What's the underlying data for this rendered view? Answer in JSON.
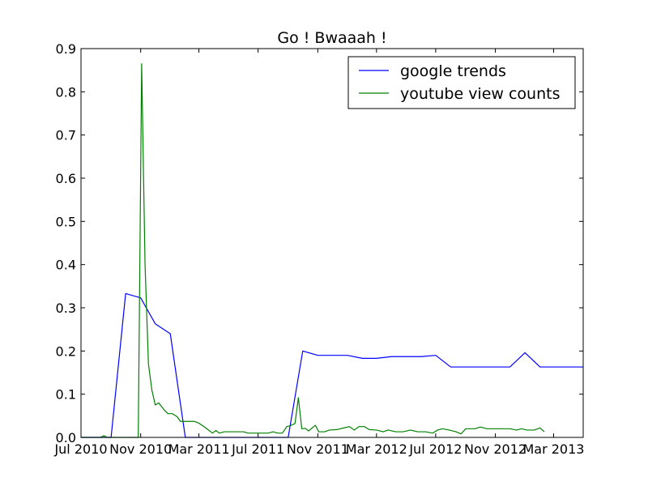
{
  "chart_data": {
    "type": "line",
    "title": "Go ! Bwaaah !",
    "xlabel": "",
    "ylabel": "",
    "xlim": [
      "2010-07-01",
      "2013-05-01"
    ],
    "ylim": [
      0,
      0.9
    ],
    "x_ticks": [
      {
        "date": "2010-07-01",
        "label": "Jul 2010"
      },
      {
        "date": "2010-11-01",
        "label": "Nov 2010"
      },
      {
        "date": "2011-03-01",
        "label": "Mar 2011"
      },
      {
        "date": "2011-07-01",
        "label": "Jul 2011"
      },
      {
        "date": "2011-11-01",
        "label": "Nov 2011"
      },
      {
        "date": "2012-03-01",
        "label": "Mar 2012"
      },
      {
        "date": "2012-07-01",
        "label": "Jul 2012"
      },
      {
        "date": "2012-11-01",
        "label": "Nov 2012"
      },
      {
        "date": "2013-03-01",
        "label": "Mar 2013"
      }
    ],
    "y_ticks": [
      {
        "value": 0.0,
        "label": "0.0"
      },
      {
        "value": 0.1,
        "label": "0.1"
      },
      {
        "value": 0.2,
        "label": "0.2"
      },
      {
        "value": 0.3,
        "label": "0.3"
      },
      {
        "value": 0.4,
        "label": "0.4"
      },
      {
        "value": 0.5,
        "label": "0.5"
      },
      {
        "value": 0.6,
        "label": "0.6"
      },
      {
        "value": 0.7,
        "label": "0.7"
      },
      {
        "value": 0.8,
        "label": "0.8"
      },
      {
        "value": 0.9,
        "label": "0.9"
      }
    ],
    "grid": false,
    "legend_position": "top-right",
    "series": [
      {
        "name": "google trends",
        "color": "#0000ff",
        "points": [
          [
            "2010-07-01",
            0.0
          ],
          [
            "2010-08-01",
            0.0
          ],
          [
            "2010-09-01",
            0.0
          ],
          [
            "2010-10-01",
            0.333
          ],
          [
            "2010-11-01",
            0.323
          ],
          [
            "2010-12-01",
            0.263
          ],
          [
            "2011-01-01",
            0.24
          ],
          [
            "2011-02-01",
            0.0
          ],
          [
            "2011-03-01",
            0.0
          ],
          [
            "2011-04-01",
            0.0
          ],
          [
            "2011-05-01",
            0.0
          ],
          [
            "2011-06-01",
            0.0
          ],
          [
            "2011-07-01",
            0.0
          ],
          [
            "2011-08-01",
            0.0
          ],
          [
            "2011-09-01",
            0.0
          ],
          [
            "2011-10-01",
            0.2
          ],
          [
            "2011-11-01",
            0.19
          ],
          [
            "2011-12-01",
            0.19
          ],
          [
            "2012-01-01",
            0.19
          ],
          [
            "2012-02-01",
            0.183
          ],
          [
            "2012-03-01",
            0.183
          ],
          [
            "2012-04-01",
            0.187
          ],
          [
            "2012-05-01",
            0.187
          ],
          [
            "2012-06-01",
            0.187
          ],
          [
            "2012-07-01",
            0.19
          ],
          [
            "2012-08-01",
            0.163
          ],
          [
            "2012-09-01",
            0.163
          ],
          [
            "2012-10-01",
            0.163
          ],
          [
            "2012-11-01",
            0.163
          ],
          [
            "2012-12-01",
            0.163
          ],
          [
            "2013-01-01",
            0.196
          ],
          [
            "2013-02-01",
            0.163
          ],
          [
            "2013-03-01",
            0.163
          ],
          [
            "2013-04-01",
            0.163
          ],
          [
            "2013-05-01",
            0.163
          ]
        ]
      },
      {
        "name": "youtube view counts",
        "color": "#008000",
        "points": [
          [
            "2010-07-01",
            0.0
          ],
          [
            "2010-08-10",
            0.0
          ],
          [
            "2010-08-17",
            0.004
          ],
          [
            "2010-08-24",
            0.0
          ],
          [
            "2010-10-27",
            0.0
          ],
          [
            "2010-11-03",
            0.865
          ],
          [
            "2010-11-10",
            0.4
          ],
          [
            "2010-11-17",
            0.17
          ],
          [
            "2010-11-24",
            0.11
          ],
          [
            "2010-12-01",
            0.075
          ],
          [
            "2010-12-08",
            0.08
          ],
          [
            "2010-12-20",
            0.063
          ],
          [
            "2010-12-27",
            0.055
          ],
          [
            "2011-01-05",
            0.055
          ],
          [
            "2011-01-15",
            0.048
          ],
          [
            "2011-01-22",
            0.037
          ],
          [
            "2011-02-05",
            0.037
          ],
          [
            "2011-02-20",
            0.037
          ],
          [
            "2011-03-01",
            0.033
          ],
          [
            "2011-03-15",
            0.022
          ],
          [
            "2011-03-29",
            0.01
          ],
          [
            "2011-04-05",
            0.016
          ],
          [
            "2011-04-12",
            0.01
          ],
          [
            "2011-04-22",
            0.013
          ],
          [
            "2011-05-10",
            0.013
          ],
          [
            "2011-06-01",
            0.013
          ],
          [
            "2011-06-10",
            0.01
          ],
          [
            "2011-06-25",
            0.01
          ],
          [
            "2011-07-10",
            0.01
          ],
          [
            "2011-07-22",
            0.01
          ],
          [
            "2011-08-01",
            0.013
          ],
          [
            "2011-08-10",
            0.01
          ],
          [
            "2011-08-20",
            0.01
          ],
          [
            "2011-08-29",
            0.025
          ],
          [
            "2011-09-05",
            0.027
          ],
          [
            "2011-09-15",
            0.032
          ],
          [
            "2011-09-22",
            0.092
          ],
          [
            "2011-09-29",
            0.02
          ],
          [
            "2011-10-06",
            0.021
          ],
          [
            "2011-10-13",
            0.015
          ],
          [
            "2011-10-27",
            0.028
          ],
          [
            "2011-11-03",
            0.013
          ],
          [
            "2011-11-15",
            0.013
          ],
          [
            "2011-11-25",
            0.017
          ],
          [
            "2011-12-10",
            0.018
          ],
          [
            "2011-12-25",
            0.022
          ],
          [
            "2012-01-05",
            0.025
          ],
          [
            "2012-01-15",
            0.017
          ],
          [
            "2012-01-25",
            0.025
          ],
          [
            "2012-02-05",
            0.025
          ],
          [
            "2012-02-15",
            0.018
          ],
          [
            "2012-03-01",
            0.017
          ],
          [
            "2012-03-15",
            0.013
          ],
          [
            "2012-03-25",
            0.017
          ],
          [
            "2012-04-10",
            0.013
          ],
          [
            "2012-04-25",
            0.013
          ],
          [
            "2012-05-10",
            0.017
          ],
          [
            "2012-05-25",
            0.013
          ],
          [
            "2012-06-10",
            0.013
          ],
          [
            "2012-06-25",
            0.01
          ],
          [
            "2012-07-05",
            0.017
          ],
          [
            "2012-07-15",
            0.02
          ],
          [
            "2012-07-29",
            0.017
          ],
          [
            "2012-08-12",
            0.013
          ],
          [
            "2012-08-22",
            0.008
          ],
          [
            "2012-09-01",
            0.02
          ],
          [
            "2012-09-20",
            0.02
          ],
          [
            "2012-10-01",
            0.024
          ],
          [
            "2012-10-15",
            0.02
          ],
          [
            "2012-11-01",
            0.02
          ],
          [
            "2012-11-15",
            0.02
          ],
          [
            "2012-12-01",
            0.02
          ],
          [
            "2012-12-15",
            0.017
          ],
          [
            "2012-12-25",
            0.02
          ],
          [
            "2013-01-05",
            0.017
          ],
          [
            "2013-01-20",
            0.017
          ],
          [
            "2013-02-01",
            0.022
          ],
          [
            "2013-02-10",
            0.013
          ]
        ]
      }
    ]
  }
}
